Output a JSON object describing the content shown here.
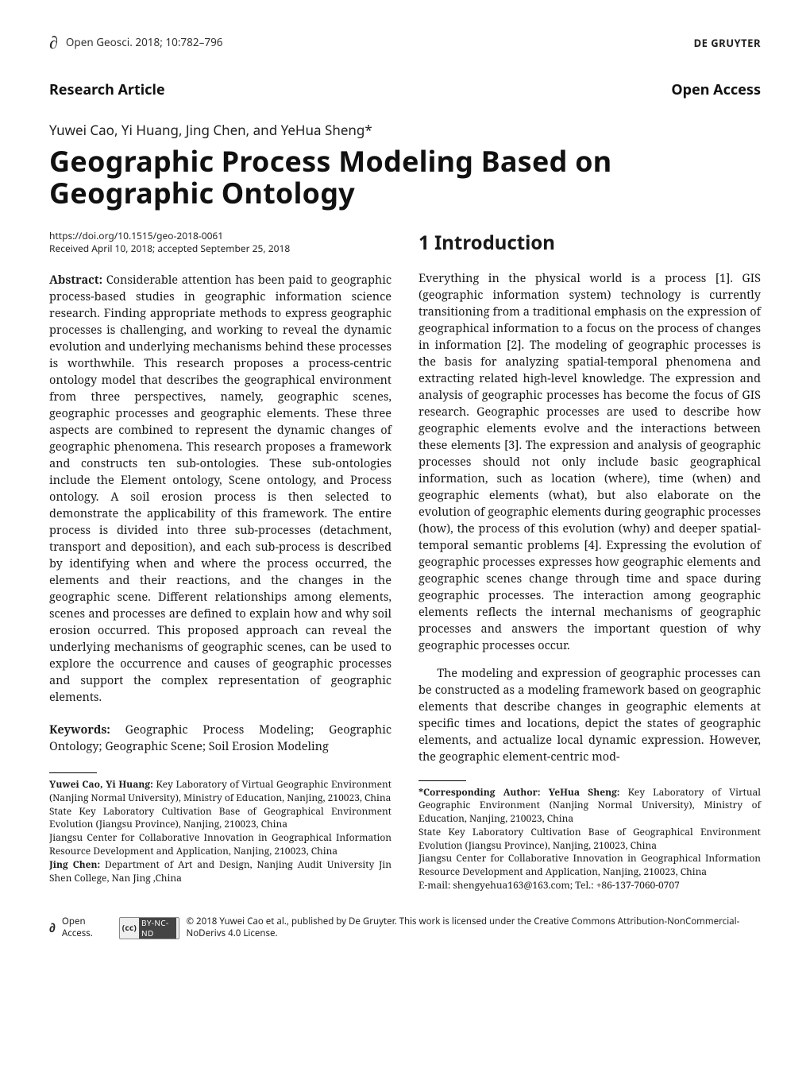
{
  "header": {
    "oa_icon": "∂",
    "citation": "Open Geosci. 2018; 10:782–796",
    "publisher": "DE GRUYTER"
  },
  "labels": {
    "research_article": "Research Article",
    "open_access": "Open Access"
  },
  "authors_line": "Yuwei Cao, Yi Huang, Jing Chen, and YeHua Sheng*",
  "title": "Geographic Process Modeling Based on Geographic Ontology",
  "meta": {
    "doi": "https://doi.org/10.1515/geo-2018-0061",
    "received": "Received April 10, 2018; accepted September 25, 2018"
  },
  "abstract": {
    "label": "Abstract:",
    "body": "Considerable attention has been paid to geographic process-based studies in geographic information science research. Finding appropriate methods to express geographic processes is challenging, and working to reveal the dynamic evolution and underlying mechanisms behind these processes is worthwhile. This research proposes a process-centric ontology model that describes the geographical environment from three perspectives, namely, geographic scenes, geographic processes and geographic elements. These three aspects are combined to represent the dynamic changes of geographic phenomena. This research proposes a framework and constructs ten sub-ontologies. These sub-ontologies include the Element ontology, Scene ontology, and Process ontology. A soil erosion process is then selected to demonstrate the applicability of this framework. The entire process is divided into three sub-processes (detachment, transport and deposition), and each sub-process is described by identifying when and where the process occurred, the elements and their reactions, and the changes in the geographic scene. Different relationships among elements, scenes and processes are defined to explain how and why soil erosion occurred. This proposed approach can reveal the underlying mechanisms of geographic scenes, can be used to explore the occurrence and causes of geographic processes and support the complex representation of geographic elements."
  },
  "keywords": {
    "label": "Keywords:",
    "body": "Geographic Process Modeling; Geographic Ontology; Geographic Scene; Soil Erosion Modeling"
  },
  "section1": {
    "heading": "1  Introduction",
    "p1": "Everything in the physical world is a process [1]. GIS (geographic information system) technology is currently transitioning from a traditional emphasis on the expression of geographical information to a focus on the process of changes in information [2]. The modeling of geographic processes is the basis for analyzing spatial-temporal phenomena and extracting related high-level knowledge. The expression and analysis of geographic processes has become the focus of GIS research. Geographic processes are used to describe how geographic elements evolve and the interactions between these elements [3]. The expression and analysis of geographic processes should not only include basic geographical information, such as location (where), time (when) and geographic elements (what), but also elaborate on the evolution of geographic elements during geographic processes (how), the process of this evolution (why) and deeper spatial-temporal semantic problems [4]. Expressing the evolution of geographic processes expresses how geographic elements and geographic scenes change through time and space during geographic processes. The interaction among geographic elements reflects the internal mechanisms of geographic processes and answers the important question of why geographic processes occur.",
    "p2": "The modeling and expression of geographic processes can be constructed as a modeling framework based on geographic elements that describe changes in geographic elements at specific times and locations, depict the states of geographic elements, and actualize local dynamic expression. However, the geographic element-centric mod-"
  },
  "affil_left": {
    "name": "Yuwei Cao, Yi Huang:",
    "l1": " Key Laboratory of Virtual Geographic Environment (Nanjing Normal University), Ministry of Education, Nanjing, 210023, China",
    "l2": "State Key Laboratory Cultivation Base of Geographical Environment Evolution (Jiangsu Province), Nanjing, 210023, China",
    "l3": "Jiangsu Center for Collaborative Innovation in Geographical Information Resource Development and Application, Nanjing, 210023, China",
    "name2": "Jing Chen:",
    "l4": " Department of Art and Design, Nanjing Audit University Jin Shen College, Nan Jing ,China"
  },
  "affil_right": {
    "name": "*Corresponding Author: YeHua Sheng:",
    "l1": " Key Laboratory of Virtual Geographic Environment (Nanjing Normal University), Ministry of Education, Nanjing, 210023, China",
    "l2": "State Key Laboratory Cultivation Base of Geographical Environment Evolution (Jiangsu Province), Nanjing, 210023, China",
    "l3": "Jiangsu Center for Collaborative Innovation in Geographical Information Resource Development and Application, Nanjing, 210023, China",
    "l4": "E-mail: shengyehua163@163.com; Tel.: +86-137-7060-0707"
  },
  "footer": {
    "oa_icon": "∂",
    "oa_label": "Open Access.",
    "cc_cc": "(cc)",
    "cc_terms": "BY-NC-ND",
    "text": " © 2018 Yuwei Cao et al., published by De Gruyter. This work is licensed under the Creative Commons Attribution-NonCommercial-NoDerivs 4.0 License."
  }
}
